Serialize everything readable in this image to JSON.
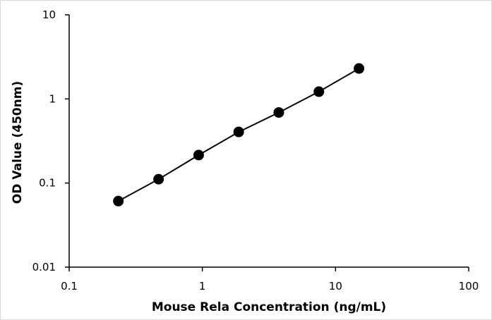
{
  "chart_data": {
    "type": "scatter",
    "title": "",
    "xlabel": "Mouse Rela Concentration (ng/mL)",
    "ylabel": "OD Value (450nm)",
    "x_scale": "log",
    "y_scale": "log",
    "xlim": [
      0.1,
      100
    ],
    "ylim": [
      0.01,
      10
    ],
    "x_ticks": [
      "0.1",
      "1",
      "10",
      "100"
    ],
    "y_ticks": [
      "0.01",
      "0.1",
      "1",
      "10"
    ],
    "grid": false,
    "legend": "none",
    "series": [
      {
        "x": [
          0.234,
          0.469,
          0.938,
          1.875,
          3.75,
          7.5,
          15
        ],
        "y": [
          0.061,
          0.111,
          0.215,
          0.405,
          0.69,
          1.22,
          2.3
        ],
        "marker_color": "#000000",
        "line_color": "#000000"
      }
    ]
  }
}
